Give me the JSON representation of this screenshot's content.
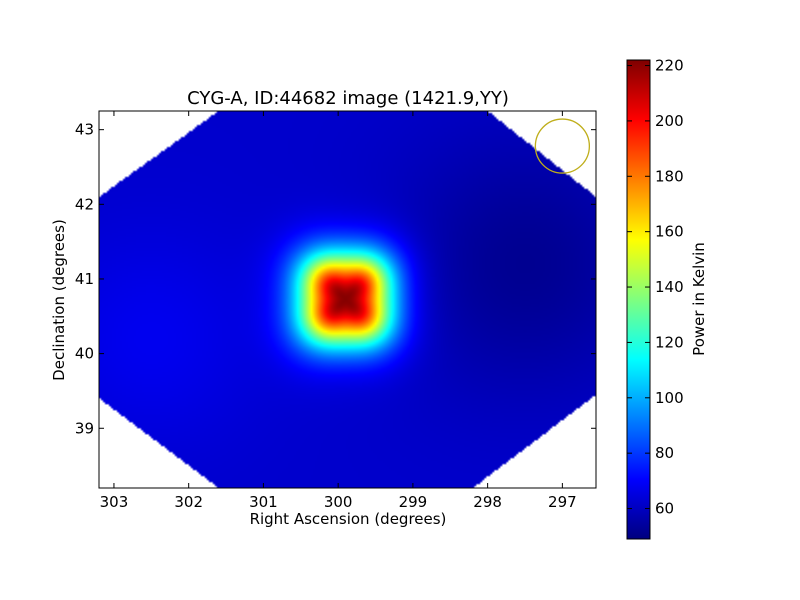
{
  "chart_data": {
    "type": "heatmap",
    "title": "CYG-A, ID:44682 image (1421.9,YY)",
    "xlabel": "Right Ascension (degrees)",
    "ylabel": "Declination (degrees)",
    "xlim": [
      303.2,
      296.55
    ],
    "ylim": [
      38.2,
      43.25
    ],
    "x_ticks": [
      303,
      302,
      301,
      300,
      299,
      298,
      297
    ],
    "y_ticks": [
      39,
      40,
      41,
      42,
      43
    ],
    "colorbar": {
      "label": "Power in Kelvin",
      "min": 49,
      "max": 222,
      "ticks": [
        60,
        80,
        100,
        120,
        140,
        160,
        180,
        200,
        220
      ],
      "colormap": "jet"
    },
    "source_peak": {
      "ra": 299.9,
      "dec": 40.73,
      "value": 222
    },
    "background_level": 62,
    "beam_marker": {
      "ra": 297.0,
      "dec": 42.78,
      "color": "#bfae1a"
    },
    "grid": false,
    "colors": {
      "colormap": [
        "#00007f",
        "#0000ff",
        "#007fff",
        "#00ffff",
        "#7fff7f",
        "#ffff00",
        "#ff7f00",
        "#ff0000",
        "#7f0000"
      ],
      "frame": "#000000"
    }
  }
}
